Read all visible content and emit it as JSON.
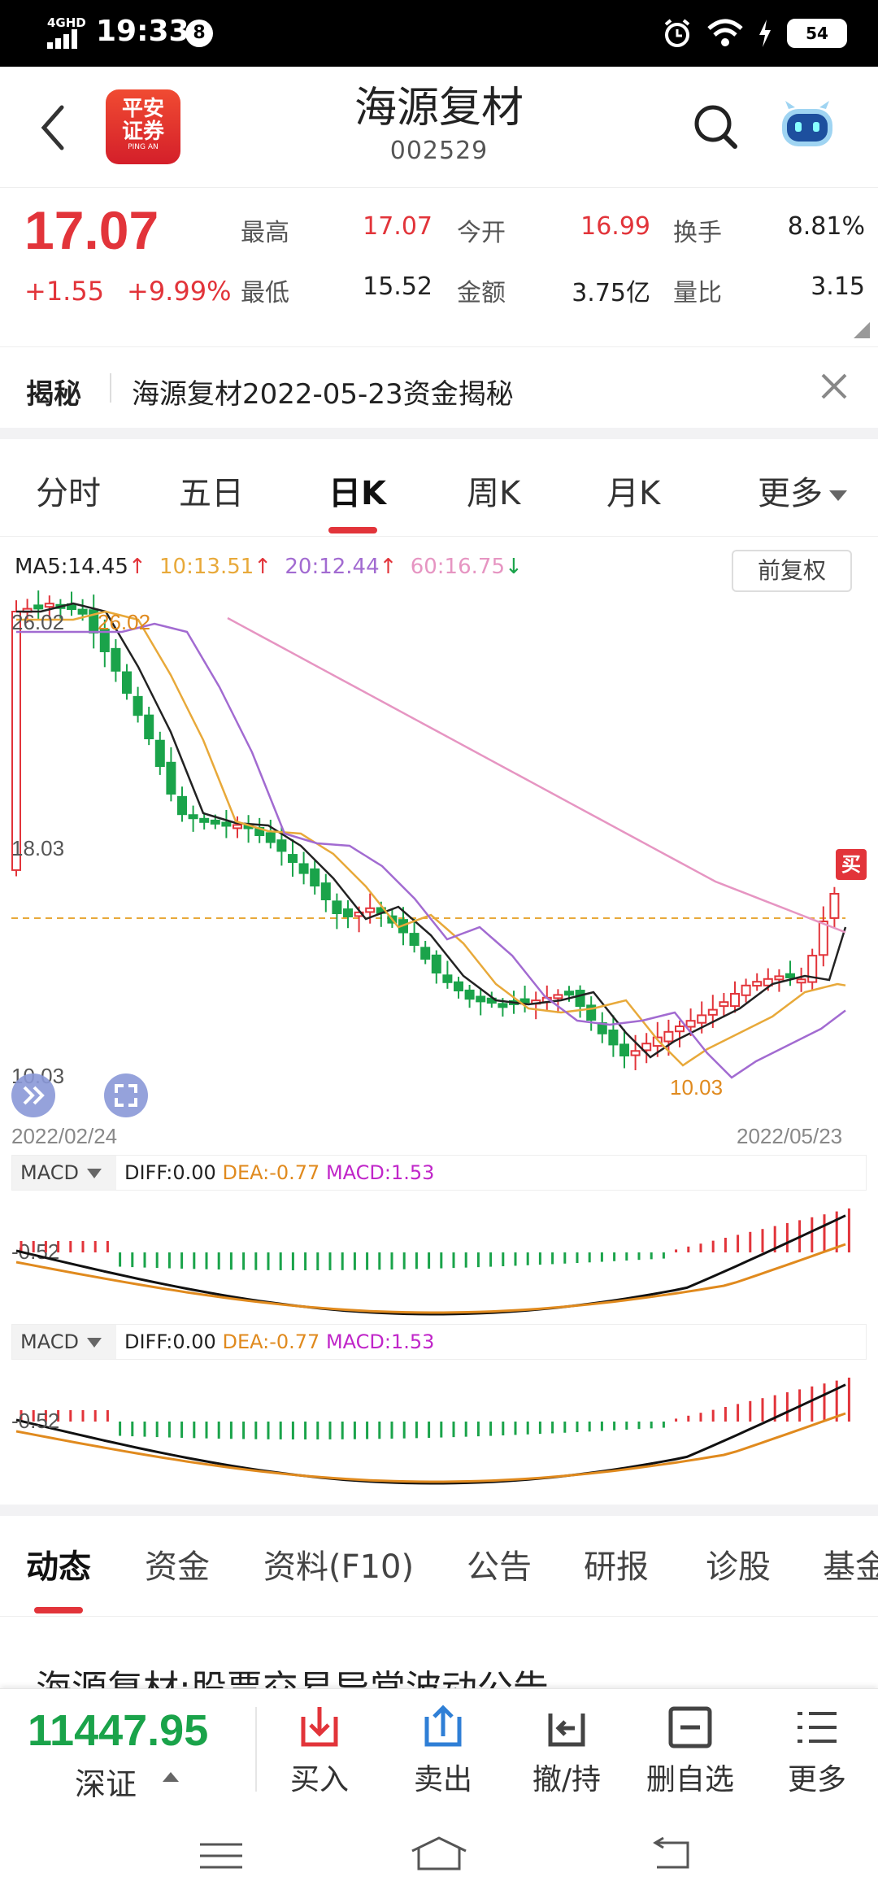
{
  "status": {
    "network": "4GHD",
    "time": "19:33",
    "notif_count": "8",
    "battery": "54"
  },
  "header": {
    "logo_line1": "平安",
    "logo_line2": "证券",
    "logo_line3": "PING AN",
    "name": "海源复材",
    "code": "002529"
  },
  "quote": {
    "price": "17.07",
    "change": "+1.55",
    "change_pct": "+9.99%",
    "high_label": "最高",
    "high": "17.07",
    "open_label": "今开",
    "open": "16.99",
    "turnover_label": "换手",
    "turnover": "8.81%",
    "low_label": "最低",
    "low": "15.52",
    "amount_label": "金额",
    "amount": "3.75亿",
    "vol_ratio_label": "量比",
    "vol_ratio": "3.15"
  },
  "reveal": {
    "tag": "揭秘",
    "text": "海源复材2022-05-23资金揭秘"
  },
  "ktabs": [
    "分时",
    "五日",
    "日K",
    "周K",
    "月K",
    "更多"
  ],
  "chart": {
    "ma5": "MA5:14.45",
    "ma10": "10:13.51",
    "ma20": "20:12.44",
    "ma60": "60:16.75",
    "adjust_button": "前复权",
    "y_top": "26.02",
    "y_mid": "18.03",
    "y_low": "10.03",
    "high_marker": "26.02",
    "low_marker": "10.03",
    "x_start": "2022/02/24",
    "x_end": "2022/05/23",
    "buy_tag": "买",
    "macd_panels": [
      {
        "selector": "MACD",
        "diff": "DIFF:0.00",
        "dea": "DEA:-0.77",
        "macd": "MACD:1.53",
        "axis": "-0.52"
      },
      {
        "selector": "MACD",
        "diff": "DIFF:0.00",
        "dea": "DEA:-0.77",
        "macd": "MACD:1.53",
        "axis": "-0.52"
      }
    ],
    "colors": {
      "up": "#e2343a",
      "down": "#1aa34a",
      "ma5": "#222222",
      "ma10": "#e8a93a",
      "ma20": "#a26bd1",
      "ma60": "#e695c2",
      "dea": "#e08a1e",
      "macd": "#c026c9"
    }
  },
  "chart_data": {
    "type": "candlestick",
    "x_range": [
      "2022/02/24",
      "2022/05/23"
    ],
    "y_labels": [
      "26.02",
      "18.03",
      "10.03"
    ],
    "period_high": 26.02,
    "period_low": 10.03,
    "last_close": 17.07
  },
  "btabs": [
    "动态",
    "资金",
    "资料(F10)",
    "公告",
    "研报",
    "诊股",
    "基金"
  ],
  "news_title": "海源复材:股票交易异常波动公告",
  "bottom": {
    "index_value": "11447.95",
    "index_name": "深证",
    "buy": "买入",
    "sell": "卖出",
    "cancel": "撤/持",
    "remove": "删自选",
    "more": "更多"
  }
}
